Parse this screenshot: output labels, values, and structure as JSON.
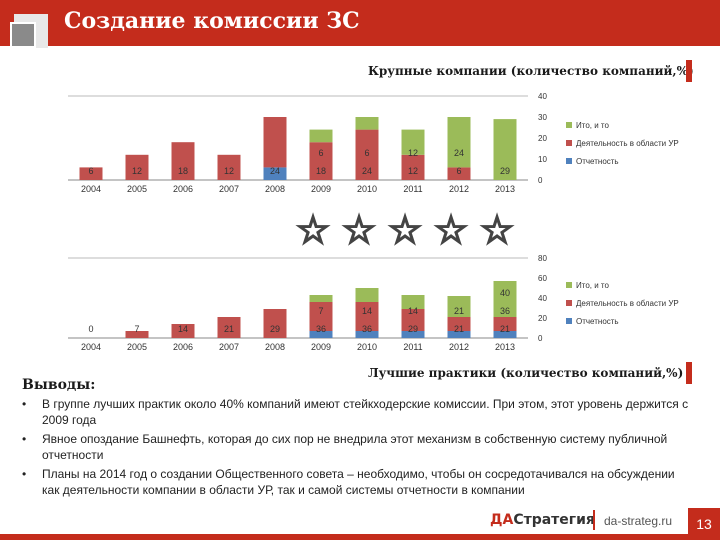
{
  "slide": {
    "title": "Создание комиссии ЗС",
    "page_number": "13",
    "logo_prefix": "ДА",
    "logo_rest": "Стратегия",
    "site": "da-strateg.ru"
  },
  "conclusions": {
    "title": "Выводы:",
    "bullets": [
      "В группе лучших практик около 40% компаний имеют стейкходерские комиссии. При этом, этот уровень держится с 2009 года",
      "Явное опоздание Башнефть, которая до сих пор не внедрила этот механизм в собственную систему публичной отчетности",
      "Планы на 2014 год о создании Общественного совета – необходимо, чтобы он сосредотачивался на обсуждении как деятельности компании в области УР, так и самой системы отчетности в компании"
    ]
  },
  "colors": {
    "accent": "#c42c1c",
    "series_report": "#4f81bd",
    "series_ur": "#c0504d",
    "series_total": "#9bbb59"
  },
  "icons": [
    "star-outline-icon",
    "star-outline-icon",
    "star-outline-icon",
    "star-outline-icon",
    "star-outline-icon"
  ],
  "chart_data": [
    {
      "type": "bar",
      "stacked": true,
      "title": "Крупные компании (количество компаний,%)",
      "categories": [
        "2004",
        "2005",
        "2006",
        "2007",
        "2008",
        "2009",
        "2010",
        "2011",
        "2012",
        "2013"
      ],
      "series": [
        {
          "name": "Отчетность",
          "values": [
            0,
            0,
            0,
            0,
            6,
            0,
            0,
            0,
            0,
            0
          ]
        },
        {
          "name": "Деятельность в области УР",
          "values": [
            6,
            12,
            18,
            12,
            24,
            18,
            24,
            12,
            6,
            0
          ]
        },
        {
          "name": "Ито, и то",
          "values": [
            0,
            0,
            0,
            0,
            0,
            6,
            6,
            12,
            24,
            29
          ]
        }
      ],
      "data_labels": [
        {
          "category": "2004",
          "text": "6"
        },
        {
          "category": "2005",
          "text": "12"
        },
        {
          "category": "2006",
          "text": "18"
        },
        {
          "category": "2007",
          "text": "12"
        },
        {
          "category": "2008",
          "text": "24"
        },
        {
          "category": "2009",
          "text": "18"
        },
        {
          "category": "2009",
          "text": "6"
        },
        {
          "category": "2010",
          "text": "24"
        },
        {
          "category": "2010",
          "text": "6"
        },
        {
          "category": "2011",
          "text": "12"
        },
        {
          "category": "2011",
          "text": "12"
        },
        {
          "category": "2012",
          "text": "6"
        },
        {
          "category": "2012",
          "text": "24"
        },
        {
          "category": "2013",
          "text": "29"
        }
      ],
      "ylim": [
        0,
        40
      ],
      "yticks": [
        "0",
        "10",
        "20",
        "30",
        "40"
      ],
      "legend_position": "right"
    },
    {
      "type": "bar",
      "stacked": true,
      "title": "Лучшие практики (количество компаний,%)",
      "categories": [
        "2004",
        "2005",
        "2006",
        "2007",
        "2008",
        "2009",
        "2010",
        "2011",
        "2012",
        "2013"
      ],
      "series": [
        {
          "name": "Отчетность",
          "values": [
            0,
            0,
            0,
            0,
            0,
            7,
            7,
            7,
            7,
            7
          ]
        },
        {
          "name": "Деятельность в области УР",
          "values": [
            0,
            7,
            14,
            21,
            29,
            29,
            29,
            22,
            14,
            14
          ]
        },
        {
          "name": "Ито, и то",
          "values": [
            0,
            0,
            0,
            0,
            0,
            7,
            14,
            14,
            21,
            36
          ]
        }
      ],
      "data_labels": [
        {
          "category": "2004",
          "text": "0"
        },
        {
          "category": "2005",
          "text": "7"
        },
        {
          "category": "2006",
          "text": "14"
        },
        {
          "category": "2007",
          "text": "21"
        },
        {
          "category": "2008",
          "text": "29"
        },
        {
          "category": "2009",
          "text": "36"
        },
        {
          "category": "2009",
          "text": "7"
        },
        {
          "category": "2010",
          "text": "36"
        },
        {
          "category": "2010",
          "text": "14"
        },
        {
          "category": "2011",
          "text": "29"
        },
        {
          "category": "2011",
          "text": "14"
        },
        {
          "category": "2012",
          "text": "21"
        },
        {
          "category": "2012",
          "text": "21"
        },
        {
          "category": "2013",
          "text": "21"
        },
        {
          "category": "2013",
          "text": "36"
        },
        {
          "category": "2013",
          "text": "40"
        }
      ],
      "ylim": [
        0,
        80
      ],
      "yticks": [
        "0",
        "20",
        "40",
        "60",
        "80"
      ],
      "legend_position": "right"
    }
  ]
}
